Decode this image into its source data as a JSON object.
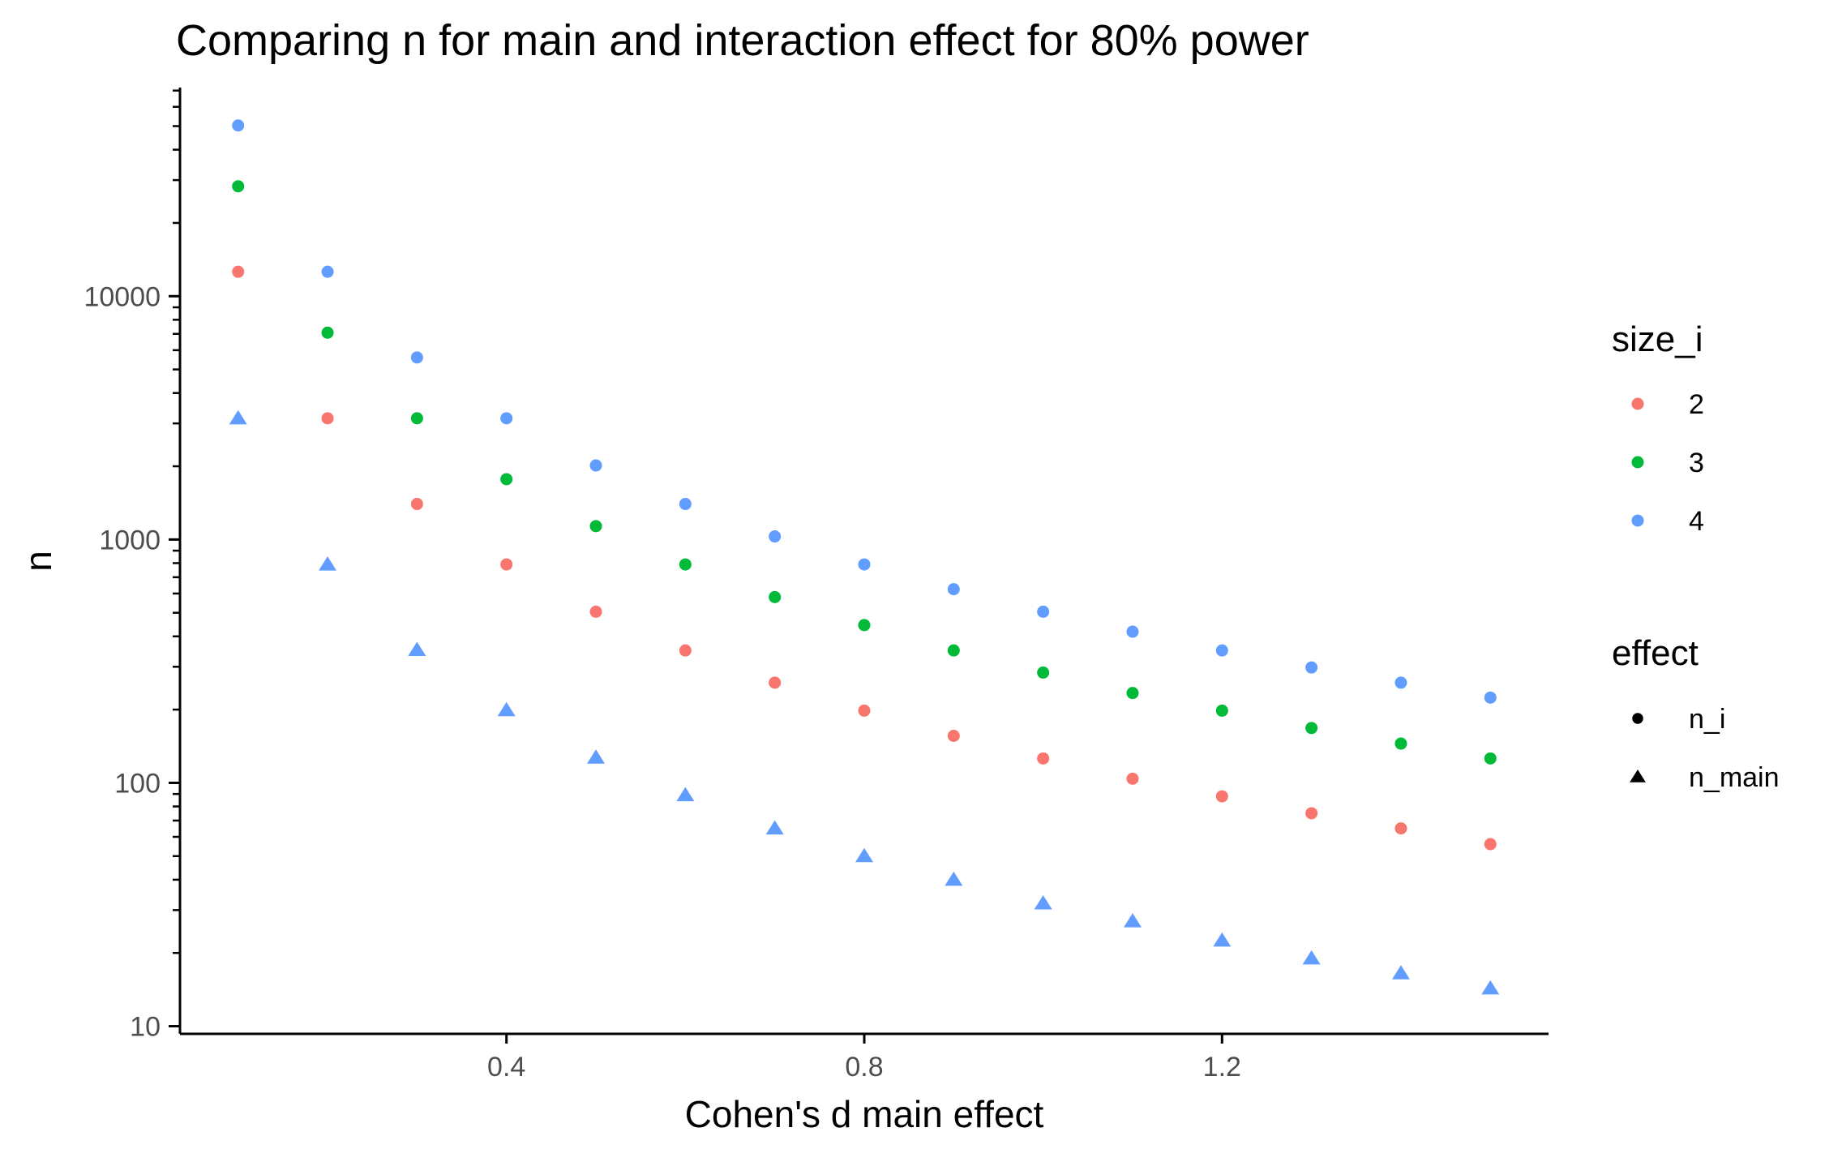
{
  "chart_data": {
    "type": "scatter",
    "title": "Comparing n for main and interaction effect for 80% power",
    "xlabel": "Cohen's d main effect",
    "ylabel": "n",
    "x_ticks": [
      0.4,
      0.8,
      1.2
    ],
    "x_tick_labels": [
      "0.4",
      "0.8",
      "1.2"
    ],
    "y_scale": "log10",
    "y_ticks": [
      10,
      100,
      1000,
      10000
    ],
    "y_tick_labels": [
      "10",
      "100",
      "1000",
      "10000"
    ],
    "xlim": [
      0.035,
      1.565
    ],
    "ylim": [
      9.3,
      72000
    ],
    "grid": false,
    "x": [
      0.1,
      0.2,
      0.3,
      0.4,
      0.5,
      0.6,
      0.7,
      0.8,
      0.9,
      1.0,
      1.1,
      1.2,
      1.3,
      1.4,
      1.5
    ],
    "legend": {
      "placement": "right",
      "color": {
        "title": "size_i",
        "entries": [
          {
            "label": "2",
            "color": "#F8766D"
          },
          {
            "label": "3",
            "color": "#00BA38"
          },
          {
            "label": "4",
            "color": "#619CFF"
          }
        ]
      },
      "shape": {
        "title": "effect",
        "entries": [
          {
            "label": "n_i",
            "shape": "circle"
          },
          {
            "label": "n_main",
            "shape": "triangle"
          }
        ]
      }
    },
    "series": [
      {
        "size_i": "2",
        "effect": "n_i",
        "color": "#F8766D",
        "shape": "circle",
        "values": [
          12600,
          3150,
          1400,
          790,
          505,
          350,
          258,
          198,
          156,
          126,
          104,
          88,
          75,
          65,
          56
        ]
      },
      {
        "size_i": "3",
        "effect": "n_i",
        "color": "#00BA38",
        "shape": "circle",
        "values": [
          28300,
          7080,
          3150,
          1770,
          1135,
          790,
          580,
          445,
          350,
          284,
          234,
          198,
          168,
          145,
          126
        ]
      },
      {
        "size_i": "4",
        "effect": "n_i",
        "color": "#619CFF",
        "shape": "circle",
        "values": [
          50300,
          12600,
          5600,
          3150,
          2015,
          1400,
          1030,
          790,
          625,
          505,
          418,
          350,
          298,
          258,
          224
        ]
      },
      {
        "size_i": "4",
        "effect": "n_main",
        "color": "#619CFF",
        "shape": "triangle",
        "values": [
          3150,
          790,
          352,
          199,
          127,
          89,
          65,
          50,
          40,
          32,
          27,
          22.5,
          19,
          16.5,
          14.3
        ]
      }
    ]
  }
}
